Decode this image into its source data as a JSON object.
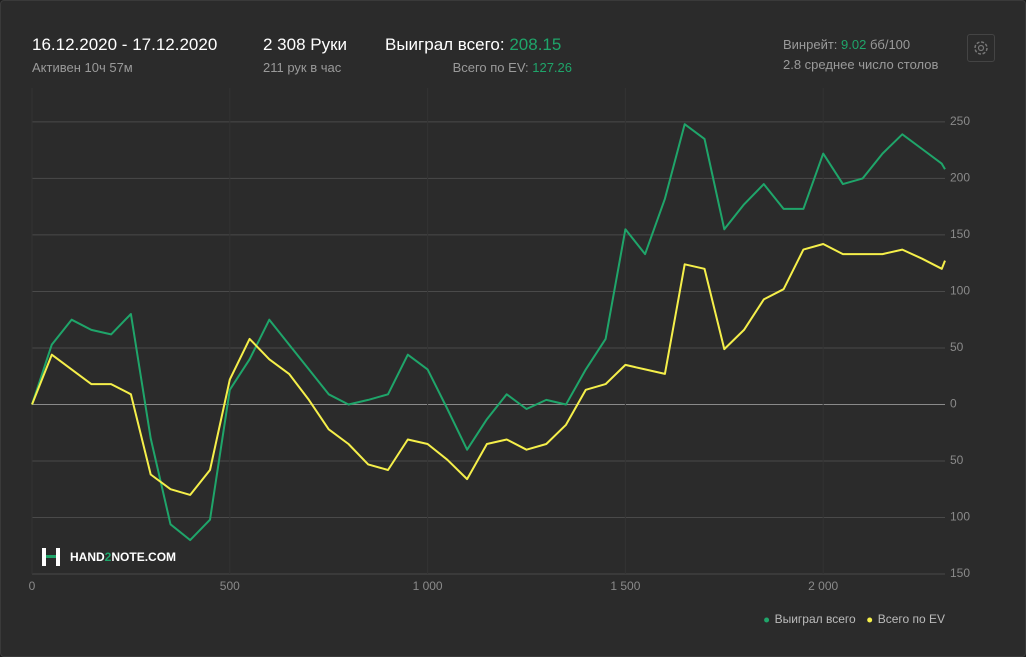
{
  "header": {
    "date_range": "16.12.2020 - 17.12.2020",
    "active": "Активен 10ч 57м",
    "hands": "2 308 Руки",
    "hands_per_hour": "211 рук в час",
    "won_label": "Выиграл всего: ",
    "won_value": "208.15",
    "ev_label": "Всего по EV: ",
    "ev_value": "127.26",
    "winrate_label": "Винрейт: ",
    "winrate_value": "9.02",
    "winrate_unit": " бб/100",
    "tables": "2.8 среднее число столов"
  },
  "logo": {
    "part1": "HAND",
    "part2": "2",
    "part3": "NOTE.COM"
  },
  "chart_data": {
    "type": "line",
    "x": [
      0,
      50,
      100,
      150,
      200,
      250,
      300,
      350,
      400,
      450,
      500,
      550,
      600,
      650,
      700,
      750,
      800,
      850,
      900,
      950,
      1000,
      1050,
      1100,
      1150,
      1200,
      1250,
      1300,
      1350,
      1400,
      1450,
      1500,
      1550,
      1600,
      1650,
      1700,
      1750,
      1800,
      1850,
      1900,
      1950,
      2000,
      2050,
      2100,
      2150,
      2200,
      2250,
      2300,
      2308
    ],
    "series": [
      {
        "name": "Выиграл всего",
        "color": "#1fa56a",
        "values": [
          0,
          53,
          75,
          66,
          62,
          80,
          -30,
          -106,
          -120,
          -102,
          13,
          40,
          75,
          53,
          31,
          9,
          0,
          4,
          9,
          44,
          31,
          -4,
          -40,
          -13,
          9,
          -4,
          4,
          0,
          31,
          58,
          155,
          133,
          182,
          248,
          235,
          155,
          177,
          195,
          173,
          173,
          222,
          195,
          200,
          222,
          239,
          226,
          213,
          208.15
        ]
      },
      {
        "name": "Всего по EV",
        "color": "#f5ef4a",
        "values": [
          0,
          44,
          31,
          18,
          18,
          9,
          -62,
          -75,
          -80,
          -58,
          22,
          58,
          40,
          27,
          4,
          -22,
          -35,
          -53,
          -58,
          -31,
          -35,
          -49,
          -66,
          -35,
          -31,
          -40,
          -35,
          -18,
          13,
          18,
          35,
          31,
          27,
          124,
          120,
          49,
          66,
          93,
          102,
          137,
          142,
          133,
          133,
          133,
          137,
          129,
          120,
          127.26
        ]
      }
    ],
    "xlim": [
      0,
      2308
    ],
    "xticks": [
      0,
      500,
      {
        "value": 1000,
        "label": "1 000"
      },
      {
        "value": 1500,
        "label": "1 500"
      },
      {
        "value": 2000,
        "label": "2 000"
      }
    ],
    "ylim": [
      -150,
      280
    ],
    "yticks": [
      {
        "value": -150,
        "label": "150"
      },
      {
        "value": -100,
        "label": "100"
      },
      {
        "value": -50,
        "label": "50"
      },
      0,
      50,
      100,
      150,
      200,
      250
    ],
    "grid": true,
    "legend": "bottom-right"
  }
}
